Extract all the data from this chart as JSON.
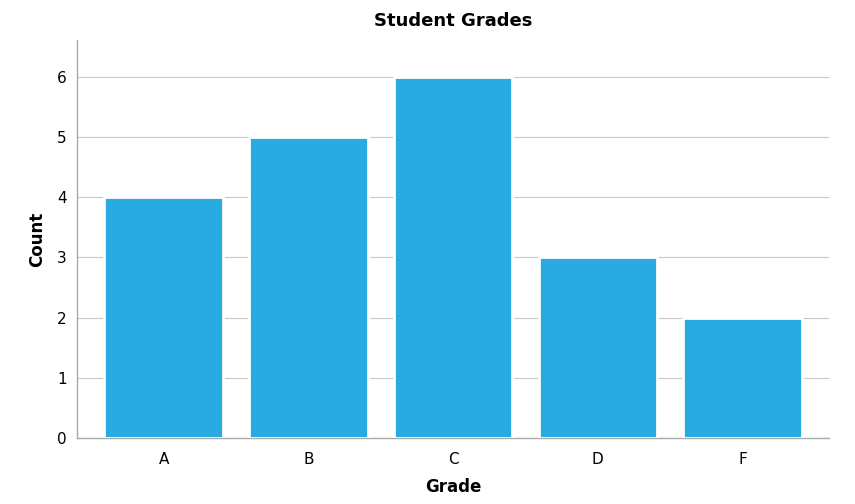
{
  "categories": [
    "A",
    "B",
    "C",
    "D",
    "F"
  ],
  "values": [
    4,
    5,
    6,
    3,
    2
  ],
  "bar_color": "#29ABE2",
  "title": "Student Grades",
  "xlabel": "Grade",
  "ylabel": "Count",
  "ylim": [
    0,
    6.6
  ],
  "yticks": [
    0,
    1,
    2,
    3,
    4,
    5,
    6
  ],
  "title_fontsize": 13,
  "label_fontsize": 12,
  "tick_fontsize": 11,
  "background_color": "#ffffff",
  "grid_color": "#c8c8c8",
  "bar_width": 0.82,
  "bar_edge_color": "white",
  "bar_edge_width": 2.0,
  "spine_color": "#aaaaaa"
}
